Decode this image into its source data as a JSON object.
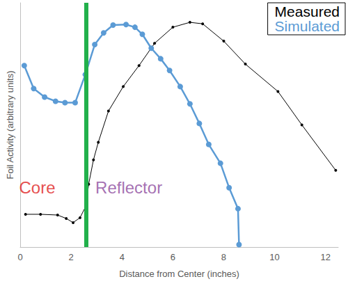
{
  "chart_data": {
    "type": "line",
    "x_label": "Distance from Center (inches)",
    "y_label": "Foil Activity (arbitrary units)",
    "xlim": [
      0,
      12.5
    ],
    "xticks": [
      0,
      2,
      4,
      6,
      8,
      10,
      12
    ],
    "ylim": [
      0,
      100
    ],
    "tick_labels": "x",
    "grid": false,
    "legend": "top-right",
    "series": [
      {
        "name": "Measured",
        "color": "#000000",
        "marker": "circle",
        "line_style": "solid",
        "x": [
          0.21,
          0.8,
          1.47,
          1.81,
          2.08,
          2.35,
          2.59,
          2.69,
          2.88,
          3.07,
          3.47,
          4.05,
          4.67,
          5.28,
          6.0,
          6.67,
          7.17,
          8.0,
          8.85,
          10.13,
          11.07,
          12.4
        ],
        "values": [
          13.4,
          13.4,
          13.1,
          11.7,
          10,
          12,
          16.9,
          25.7,
          35.7,
          42.9,
          55.7,
          65.7,
          74.3,
          83.4,
          90,
          92,
          91.4,
          84.3,
          74.9,
          63.7,
          50,
          31.4
        ]
      },
      {
        "name": "Simulated",
        "color": "#5b9bd5",
        "marker": "circle",
        "line_style": "solid",
        "x": [
          0.16,
          0.53,
          0.96,
          1.39,
          1.76,
          2.16,
          2.56,
          2.93,
          3.28,
          3.65,
          4.16,
          4.51,
          4.8,
          5.15,
          5.52,
          5.87,
          6.29,
          6.67,
          7.04,
          7.41,
          7.87,
          8.21,
          8.56,
          8.6
        ],
        "values": [
          74.3,
          64.9,
          61.4,
          59.7,
          59.1,
          59.1,
          70.6,
          82.9,
          87.7,
          90.9,
          91.1,
          90,
          87.1,
          81.4,
          77.1,
          72.3,
          65.7,
          58.6,
          50.6,
          42,
          34.3,
          24.3,
          15.7,
          1
        ]
      }
    ],
    "vertical_line": {
      "x": 2.6,
      "color": "#22b04b"
    },
    "annotations": [
      {
        "text": "Core",
        "x": 0.67,
        "y": 24.3,
        "color": "#e02020"
      },
      {
        "text": "Reflector",
        "x": 4.27,
        "y": 24.3,
        "color": "#8e4b9e"
      }
    ]
  }
}
